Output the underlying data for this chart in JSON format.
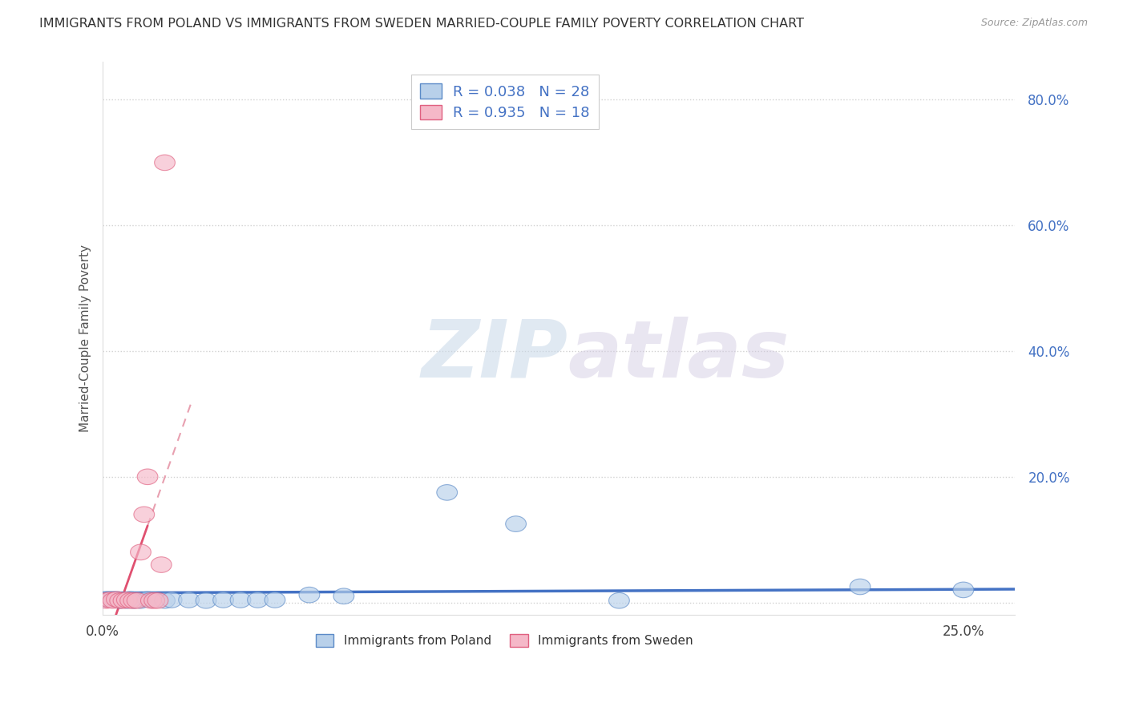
{
  "title": "IMMIGRANTS FROM POLAND VS IMMIGRANTS FROM SWEDEN MARRIED-COUPLE FAMILY POVERTY CORRELATION CHART",
  "source": "Source: ZipAtlas.com",
  "xlim": [
    0.0,
    0.265
  ],
  "ylim": [
    -0.02,
    0.86
  ],
  "yticks": [
    0.0,
    0.2,
    0.4,
    0.6,
    0.8
  ],
  "ytick_labels": [
    "",
    "20.0%",
    "40.0%",
    "60.0%",
    "80.0%"
  ],
  "xtick_positions": [
    0.0,
    0.25
  ],
  "xtick_labels": [
    "0.0%",
    "25.0%"
  ],
  "poland_R": 0.038,
  "poland_N": 28,
  "sweden_R": 0.935,
  "sweden_N": 18,
  "poland_fill_color": "#b8d0ea",
  "poland_edge_color": "#5b8ac7",
  "sweden_fill_color": "#f5b8c8",
  "sweden_edge_color": "#e06080",
  "poland_trend_color": "#4472c4",
  "sweden_trend_color": "#e05070",
  "sweden_dash_color": "#e8a0b0",
  "poland_scatter_x": [
    0.001,
    0.002,
    0.003,
    0.004,
    0.005,
    0.006,
    0.007,
    0.008,
    0.009,
    0.01,
    0.011,
    0.013,
    0.015,
    0.018,
    0.02,
    0.025,
    0.03,
    0.035,
    0.04,
    0.045,
    0.05,
    0.06,
    0.07,
    0.1,
    0.12,
    0.15,
    0.22,
    0.25
  ],
  "poland_scatter_y": [
    0.005,
    0.005,
    0.005,
    0.005,
    0.003,
    0.004,
    0.003,
    0.005,
    0.003,
    0.004,
    0.003,
    0.005,
    0.004,
    0.003,
    0.004,
    0.004,
    0.003,
    0.004,
    0.004,
    0.004,
    0.004,
    0.012,
    0.01,
    0.175,
    0.125,
    0.003,
    0.025,
    0.02
  ],
  "sweden_scatter_x": [
    0.001,
    0.002,
    0.003,
    0.004,
    0.005,
    0.006,
    0.007,
    0.008,
    0.009,
    0.01,
    0.011,
    0.012,
    0.013,
    0.014,
    0.015,
    0.016,
    0.017,
    0.018
  ],
  "sweden_scatter_y": [
    0.003,
    0.004,
    0.003,
    0.005,
    0.003,
    0.003,
    0.004,
    0.003,
    0.003,
    0.003,
    0.08,
    0.14,
    0.2,
    0.003,
    0.003,
    0.003,
    0.06,
    0.7
  ],
  "watermark_zip": "ZIP",
  "watermark_atlas": "atlas",
  "legend_poland_label": "Immigrants from Poland",
  "legend_sweden_label": "Immigrants from Sweden",
  "grid_color": "#cccccc",
  "background_color": "#ffffff",
  "ylabel": "Married-Couple Family Poverty"
}
